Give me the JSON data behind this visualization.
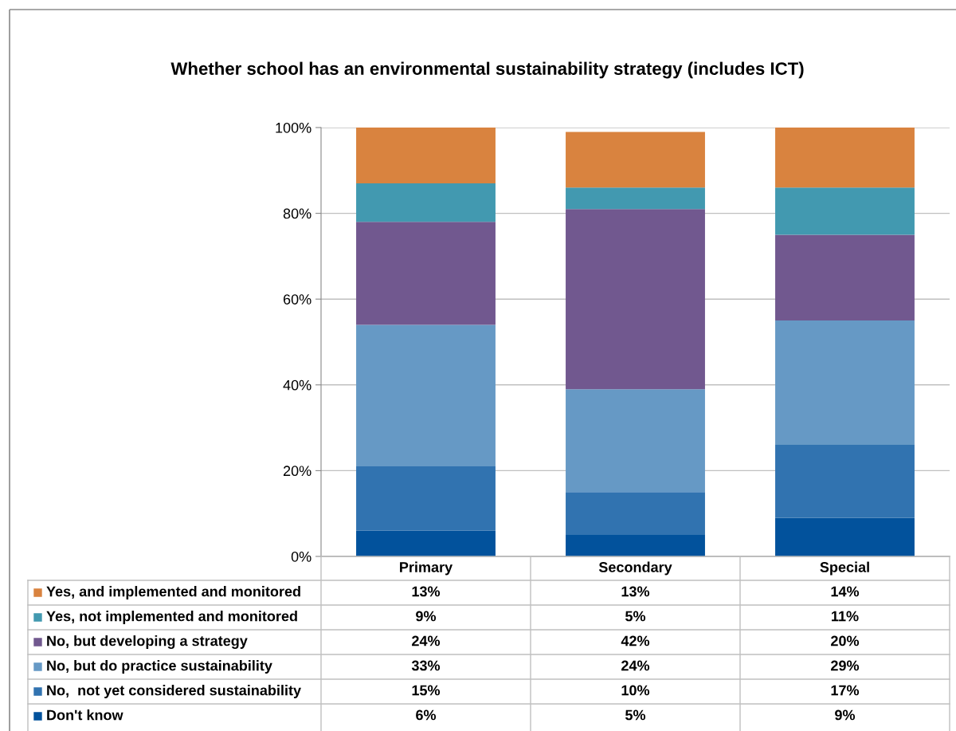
{
  "chart_data": {
    "type": "bar",
    "stacked": true,
    "title": "Whether school has an environmental sustainability strategy (includes ICT)",
    "categories": [
      "Primary",
      "Secondary",
      "Special"
    ],
    "series": [
      {
        "name": "Don't know",
        "color": "#02529c",
        "values": [
          6,
          5,
          9
        ],
        "value_labels": [
          "6%",
          "5%",
          "9%"
        ]
      },
      {
        "name": "No,  not yet considered sustainability",
        "color": "#3173b0",
        "values": [
          15,
          10,
          17
        ],
        "value_labels": [
          "15%",
          "10%",
          "17%"
        ]
      },
      {
        "name": "No, but do practice sustainability",
        "color": "#6699c5",
        "values": [
          33,
          24,
          29
        ],
        "value_labels": [
          "33%",
          "24%",
          "29%"
        ]
      },
      {
        "name": "No, but developing a strategy",
        "color": "#71588f",
        "values": [
          24,
          42,
          20
        ],
        "value_labels": [
          "24%",
          "42%",
          "20%"
        ]
      },
      {
        "name": "Yes, not implemented and monitored",
        "color": "#4299b0",
        "values": [
          9,
          5,
          11
        ],
        "value_labels": [
          "9%",
          "5%",
          "11%"
        ]
      },
      {
        "name": "Yes, and implemented and monitored",
        "color": "#d9833f",
        "values": [
          13,
          13,
          14
        ],
        "value_labels": [
          "13%",
          "13%",
          "14%"
        ]
      }
    ],
    "ylim": [
      0,
      100
    ],
    "yticks": [
      {
        "value": 0,
        "label": "0%"
      },
      {
        "value": 20,
        "label": "20%"
      },
      {
        "value": 40,
        "label": "40%"
      },
      {
        "value": 60,
        "label": "60%"
      },
      {
        "value": 80,
        "label": "80%"
      },
      {
        "value": 100,
        "label": "100%"
      }
    ],
    "grid": "y",
    "legend": "bottom"
  }
}
